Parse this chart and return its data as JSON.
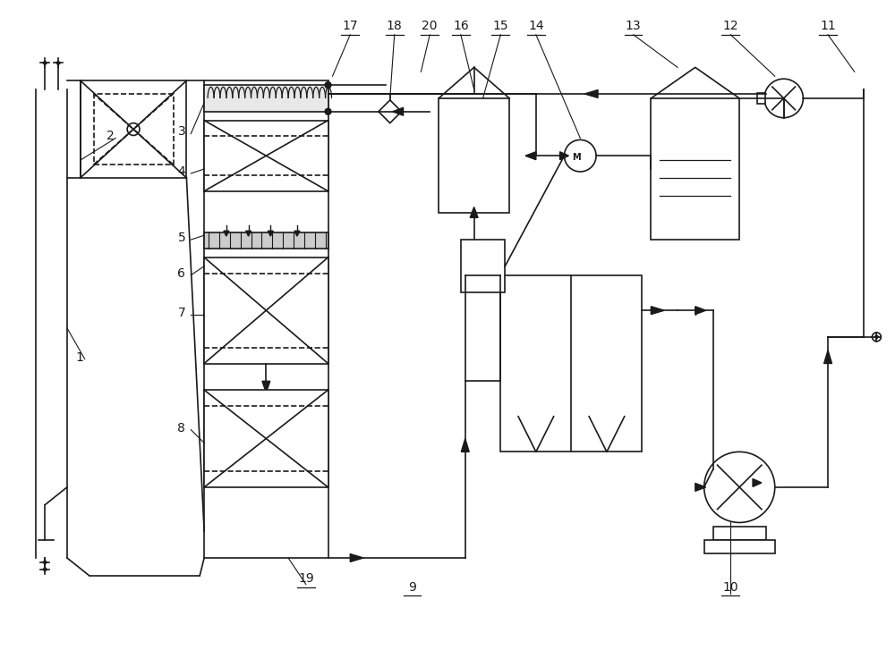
{
  "bg_color": "#ffffff",
  "line_color": "#1a1a1a",
  "figsize": [
    10.0,
    7.27
  ],
  "dpi": 100
}
